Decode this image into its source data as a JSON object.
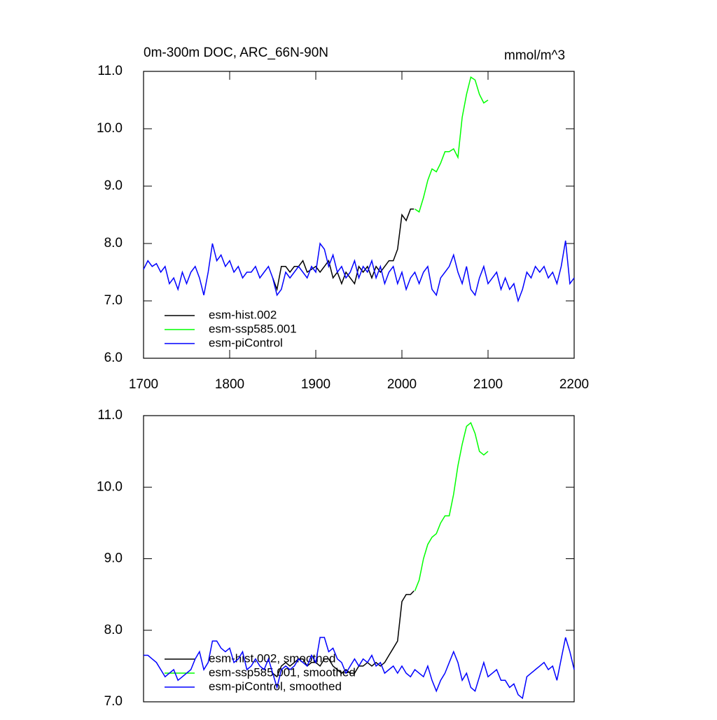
{
  "chart_data": [
    {
      "type": "line",
      "title": "0m-300m DOC, ARC_66N-90N",
      "units": "mmol/m^3",
      "xlim": [
        1700,
        2200
      ],
      "xticks": [
        1700,
        1800,
        1900,
        2000,
        2100,
        2200
      ],
      "ylim": [
        6,
        11
      ],
      "yticks": [
        {
          "value": 6,
          "label": "6.0"
        },
        {
          "value": 7,
          "label": "7.0"
        },
        {
          "value": 8,
          "label": "8.0"
        },
        {
          "value": 9,
          "label": "9.0"
        },
        {
          "value": 10,
          "label": "10.0"
        },
        {
          "value": 11,
          "label": "11.0"
        }
      ],
      "series": [
        {
          "name": "esm-hist.002",
          "color": "#000000",
          "x": [
            1850,
            1855,
            1860,
            1865,
            1870,
            1875,
            1880,
            1885,
            1890,
            1895,
            1900,
            1905,
            1910,
            1915,
            1920,
            1925,
            1930,
            1935,
            1940,
            1945,
            1950,
            1955,
            1960,
            1965,
            1970,
            1975,
            1980,
            1985,
            1990,
            1995,
            2000,
            2005,
            2010,
            2014
          ],
          "values": [
            7.4,
            7.2,
            7.6,
            7.6,
            7.5,
            7.6,
            7.6,
            7.7,
            7.5,
            7.55,
            7.6,
            7.5,
            7.6,
            7.7,
            7.4,
            7.5,
            7.3,
            7.5,
            7.4,
            7.3,
            7.6,
            7.5,
            7.6,
            7.4,
            7.6,
            7.5,
            7.6,
            7.7,
            7.7,
            7.9,
            8.5,
            8.4,
            8.6,
            8.6
          ]
        },
        {
          "name": "esm-ssp585.001",
          "color": "#00ff00",
          "x": [
            2015,
            2020,
            2025,
            2030,
            2035,
            2040,
            2045,
            2050,
            2055,
            2060,
            2065,
            2070,
            2075,
            2080,
            2085,
            2090,
            2095,
            2100
          ],
          "values": [
            8.6,
            8.55,
            8.8,
            9.1,
            9.3,
            9.25,
            9.4,
            9.6,
            9.6,
            9.65,
            9.5,
            10.2,
            10.6,
            10.9,
            10.85,
            10.6,
            10.45,
            10.5
          ]
        },
        {
          "name": "esm-piControl",
          "color": "#0000ff",
          "x": [
            1700,
            1705,
            1710,
            1715,
            1720,
            1725,
            1730,
            1735,
            1740,
            1745,
            1750,
            1755,
            1760,
            1765,
            1770,
            1775,
            1780,
            1785,
            1790,
            1795,
            1800,
            1805,
            1810,
            1815,
            1820,
            1825,
            1830,
            1835,
            1840,
            1845,
            1850,
            1855,
            1860,
            1865,
            1870,
            1875,
            1880,
            1885,
            1890,
            1895,
            1900,
            1905,
            1910,
            1915,
            1920,
            1925,
            1930,
            1935,
            1940,
            1945,
            1950,
            1955,
            1960,
            1965,
            1970,
            1975,
            1980,
            1985,
            1990,
            1995,
            2000,
            2005,
            2010,
            2015,
            2020,
            2025,
            2030,
            2035,
            2040,
            2045,
            2050,
            2055,
            2060,
            2065,
            2070,
            2075,
            2080,
            2085,
            2090,
            2095,
            2100,
            2105,
            2110,
            2115,
            2120,
            2125,
            2130,
            2135,
            2140,
            2145,
            2150,
            2155,
            2160,
            2165,
            2170,
            2175,
            2180,
            2185,
            2190,
            2195,
            2200
          ],
          "values": [
            7.55,
            7.7,
            7.6,
            7.65,
            7.5,
            7.6,
            7.3,
            7.4,
            7.2,
            7.5,
            7.3,
            7.5,
            7.6,
            7.4,
            7.1,
            7.5,
            8.0,
            7.7,
            7.8,
            7.6,
            7.7,
            7.5,
            7.6,
            7.4,
            7.5,
            7.5,
            7.6,
            7.4,
            7.5,
            7.6,
            7.4,
            7.1,
            7.2,
            7.5,
            7.4,
            7.5,
            7.6,
            7.5,
            7.4,
            7.6,
            7.5,
            8.0,
            7.9,
            7.6,
            7.8,
            7.5,
            7.6,
            7.4,
            7.5,
            7.7,
            7.4,
            7.6,
            7.5,
            7.7,
            7.4,
            7.6,
            7.3,
            7.5,
            7.6,
            7.3,
            7.5,
            7.2,
            7.4,
            7.5,
            7.3,
            7.5,
            7.6,
            7.2,
            7.1,
            7.4,
            7.5,
            7.6,
            7.8,
            7.5,
            7.3,
            7.6,
            7.2,
            7.1,
            7.4,
            7.6,
            7.3,
            7.4,
            7.5,
            7.2,
            7.4,
            7.2,
            7.3,
            7.0,
            7.2,
            7.5,
            7.4,
            7.6,
            7.5,
            7.6,
            7.4,
            7.5,
            7.3,
            7.6,
            8.05,
            7.3,
            7.4
          ]
        }
      ]
    },
    {
      "type": "line",
      "xlim": [
        1700,
        2200
      ],
      "ylim": [
        7,
        11
      ],
      "yticks": [
        {
          "value": 7,
          "label": "7.0"
        },
        {
          "value": 8,
          "label": "8.0"
        },
        {
          "value": 9,
          "label": "9.0"
        },
        {
          "value": 10,
          "label": "10.0"
        },
        {
          "value": 11,
          "label": "11.0"
        }
      ],
      "series": [
        {
          "name": "esm-hist.002, smoothed",
          "color": "#000000",
          "x": [
            1850,
            1855,
            1860,
            1865,
            1870,
            1875,
            1880,
            1885,
            1890,
            1895,
            1900,
            1905,
            1910,
            1915,
            1920,
            1925,
            1930,
            1935,
            1940,
            1945,
            1950,
            1955,
            1960,
            1965,
            1970,
            1975,
            1980,
            1985,
            1990,
            1995,
            2000,
            2005,
            2010,
            2014
          ],
          "values": [
            7.4,
            7.35,
            7.5,
            7.55,
            7.5,
            7.55,
            7.6,
            7.6,
            7.5,
            7.55,
            7.55,
            7.5,
            7.6,
            7.6,
            7.5,
            7.45,
            7.4,
            7.45,
            7.4,
            7.4,
            7.5,
            7.5,
            7.55,
            7.5,
            7.55,
            7.5,
            7.55,
            7.65,
            7.75,
            7.85,
            8.4,
            8.5,
            8.5,
            8.55
          ]
        },
        {
          "name": "esm-ssp585.001, smoothed",
          "color": "#00ff00",
          "x": [
            2015,
            2020,
            2025,
            2030,
            2035,
            2040,
            2045,
            2050,
            2055,
            2060,
            2065,
            2070,
            2075,
            2080,
            2085,
            2090,
            2095,
            2100
          ],
          "values": [
            8.55,
            8.7,
            9.0,
            9.2,
            9.3,
            9.35,
            9.5,
            9.6,
            9.6,
            9.9,
            10.3,
            10.6,
            10.85,
            10.9,
            10.75,
            10.5,
            10.45,
            10.5
          ]
        },
        {
          "name": "esm-piControl, smoothed",
          "color": "#0000ff",
          "x": [
            1700,
            1705,
            1710,
            1715,
            1720,
            1725,
            1730,
            1735,
            1740,
            1745,
            1750,
            1755,
            1760,
            1765,
            1770,
            1775,
            1780,
            1785,
            1790,
            1795,
            1800,
            1805,
            1810,
            1815,
            1820,
            1825,
            1830,
            1835,
            1840,
            1845,
            1850,
            1855,
            1860,
            1865,
            1870,
            1875,
            1880,
            1885,
            1890,
            1895,
            1900,
            1905,
            1910,
            1915,
            1920,
            1925,
            1930,
            1935,
            1940,
            1945,
            1950,
            1955,
            1960,
            1965,
            1970,
            1975,
            1980,
            1985,
            1990,
            1995,
            2000,
            2005,
            2010,
            2015,
            2020,
            2025,
            2030,
            2035,
            2040,
            2045,
            2050,
            2055,
            2060,
            2065,
            2070,
            2075,
            2080,
            2085,
            2090,
            2095,
            2100,
            2105,
            2110,
            2115,
            2120,
            2125,
            2130,
            2135,
            2140,
            2145,
            2150,
            2155,
            2160,
            2165,
            2170,
            2175,
            2180,
            2185,
            2190,
            2195,
            2200
          ],
          "values": [
            7.65,
            7.65,
            7.6,
            7.55,
            7.45,
            7.35,
            7.4,
            7.45,
            7.3,
            7.35,
            7.4,
            7.45,
            7.6,
            7.7,
            7.45,
            7.55,
            7.85,
            7.85,
            7.75,
            7.7,
            7.75,
            7.55,
            7.6,
            7.7,
            7.45,
            7.5,
            7.6,
            7.5,
            7.45,
            7.6,
            7.4,
            7.2,
            7.45,
            7.5,
            7.45,
            7.5,
            7.6,
            7.55,
            7.5,
            7.65,
            7.55,
            7.9,
            7.9,
            7.7,
            7.75,
            7.6,
            7.55,
            7.4,
            7.5,
            7.6,
            7.5,
            7.6,
            7.55,
            7.65,
            7.5,
            7.55,
            7.4,
            7.45,
            7.5,
            7.4,
            7.5,
            7.4,
            7.35,
            7.45,
            7.4,
            7.35,
            7.5,
            7.3,
            7.15,
            7.3,
            7.4,
            7.55,
            7.7,
            7.55,
            7.3,
            7.4,
            7.2,
            7.15,
            7.35,
            7.55,
            7.35,
            7.4,
            7.45,
            7.3,
            7.3,
            7.2,
            7.25,
            7.1,
            7.05,
            7.35,
            7.4,
            7.45,
            7.5,
            7.55,
            7.45,
            7.5,
            7.3,
            7.6,
            7.9,
            7.7,
            7.45
          ]
        }
      ]
    }
  ]
}
